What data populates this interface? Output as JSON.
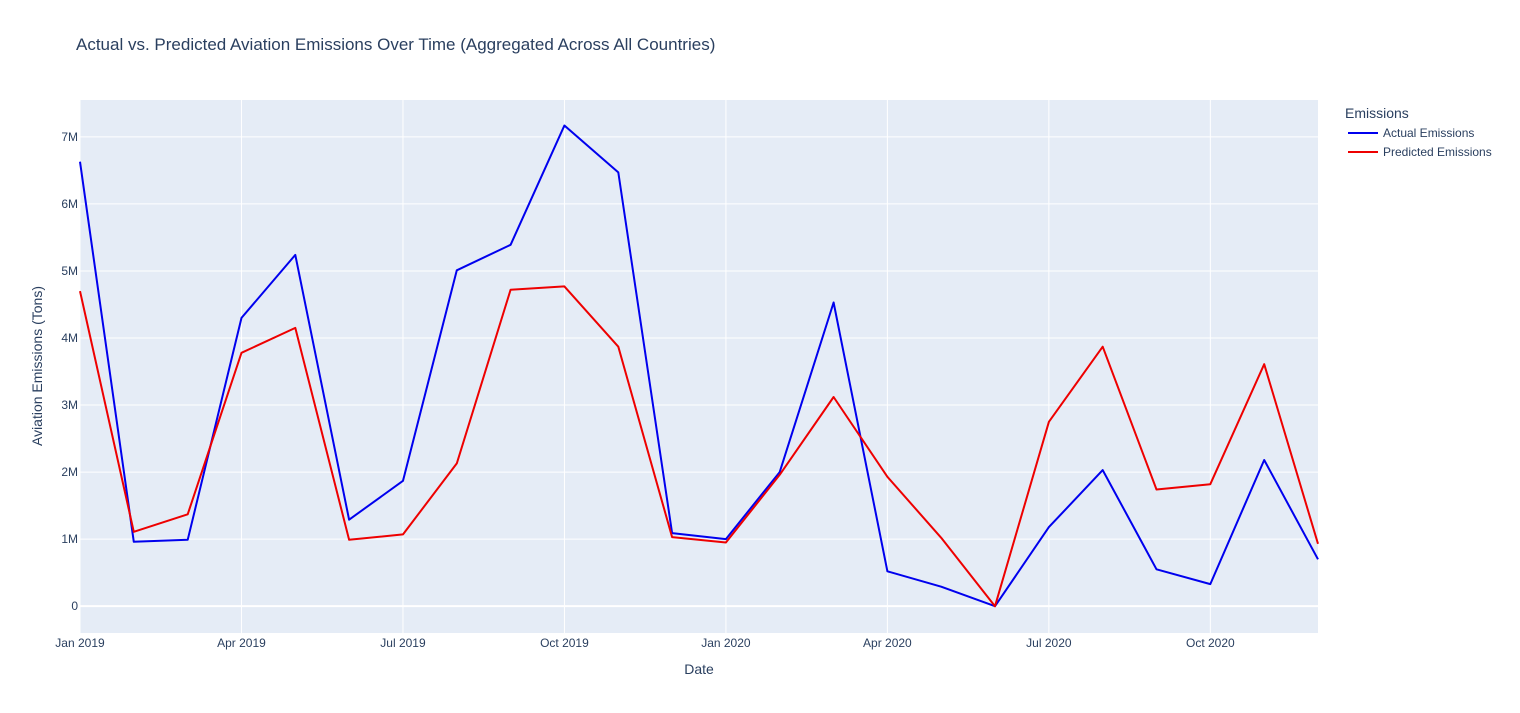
{
  "chart_data": {
    "type": "line",
    "title": "Actual vs. Predicted Aviation Emissions Over Time (Aggregated Across All Countries)",
    "xlabel": "Date",
    "ylabel": "Aviation Emissions (Tons)",
    "x": [
      "2019-01",
      "2019-02",
      "2019-03",
      "2019-04",
      "2019-05",
      "2019-06",
      "2019-07",
      "2019-08",
      "2019-09",
      "2019-10",
      "2019-11",
      "2019-12",
      "2020-01",
      "2020-02",
      "2020-03",
      "2020-04",
      "2020-05",
      "2020-06",
      "2020-07",
      "2020-08",
      "2020-09",
      "2020-10",
      "2020-11",
      "2020-12"
    ],
    "x_ticks": [
      {
        "date": "2019-01",
        "label": "Jan 2019"
      },
      {
        "date": "2019-04",
        "label": "Apr 2019"
      },
      {
        "date": "2019-07",
        "label": "Jul 2019"
      },
      {
        "date": "2019-10",
        "label": "Oct 2019"
      },
      {
        "date": "2020-01",
        "label": "Jan 2020"
      },
      {
        "date": "2020-04",
        "label": "Apr 2020"
      },
      {
        "date": "2020-07",
        "label": "Jul 2020"
      },
      {
        "date": "2020-10",
        "label": "Oct 2020"
      }
    ],
    "y_ticks": [
      {
        "value": 0,
        "label": "0"
      },
      {
        "value": 1000000,
        "label": "1M"
      },
      {
        "value": 2000000,
        "label": "2M"
      },
      {
        "value": 3000000,
        "label": "3M"
      },
      {
        "value": 4000000,
        "label": "4M"
      },
      {
        "value": 5000000,
        "label": "5M"
      },
      {
        "value": 6000000,
        "label": "6M"
      },
      {
        "value": 7000000,
        "label": "7M"
      }
    ],
    "xlim": [
      "2019-01",
      "2020-12"
    ],
    "ylim": [
      -400000,
      7550000
    ],
    "grid": true,
    "legend": {
      "title": "Emissions",
      "position": "top-right"
    },
    "series": [
      {
        "name": "Actual Emissions",
        "color": "#0000ee",
        "values": [
          6630000,
          960000,
          990000,
          4300000,
          5240000,
          1290000,
          1870000,
          5010000,
          5390000,
          7170000,
          6470000,
          1090000,
          1000000,
          2000000,
          4530000,
          520000,
          290000,
          0,
          1180000,
          2030000,
          550000,
          330000,
          2180000,
          700000
        ]
      },
      {
        "name": "Predicted Emissions",
        "color": "#ee0000",
        "values": [
          4700000,
          1110000,
          1370000,
          3780000,
          4150000,
          990000,
          1070000,
          2130000,
          4720000,
          4770000,
          3870000,
          1030000,
          950000,
          1960000,
          3120000,
          1930000,
          1020000,
          0,
          2750000,
          3870000,
          1740000,
          1820000,
          3610000,
          930000
        ]
      }
    ],
    "colors": {
      "plot_bg": "#e5ecf6",
      "grid": "#ffffff",
      "text": "#2a3f5f"
    }
  }
}
